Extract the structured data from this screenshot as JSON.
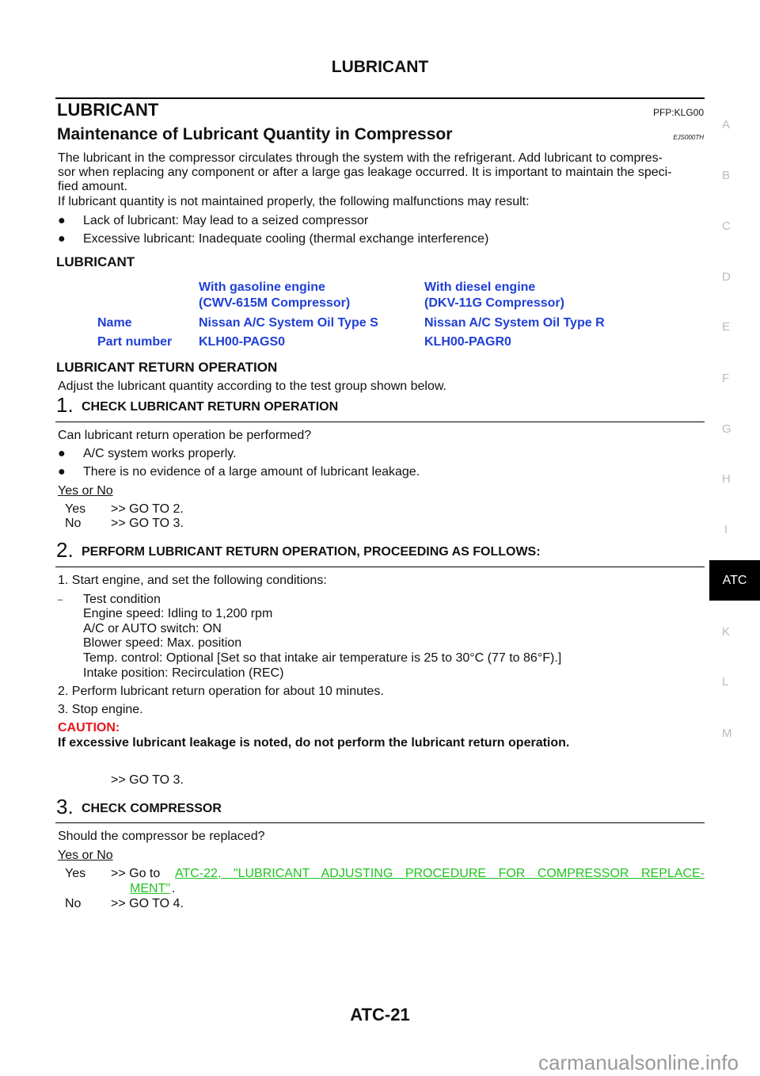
{
  "header": {
    "title": "LUBRICANT"
  },
  "section": {
    "title": "LUBRICANT",
    "code": "PFP:KLG00"
  },
  "subsection": {
    "title": "Maintenance of Lubricant Quantity in Compressor",
    "code": "EJS000TH"
  },
  "intro": [
    "The lubricant in the compressor circulates through the system with the refrigerant. Add lubricant to compres-",
    "sor when replacing any component or after a large gas leakage occurred. It is important to maintain the speci-",
    "fied amount.",
    "If lubricant quantity is not maintained properly, the following malfunctions may result:"
  ],
  "bullets": [
    "Lack of lubricant: May lead to a seized compressor",
    "Excessive lubricant: Inadequate cooling (thermal exchange interference)"
  ],
  "lubricant_heading": "LUBRICANT",
  "table": {
    "col1": [
      "With gasoline engine",
      "(CWV-615M Compressor)"
    ],
    "col2": [
      "With diesel engine",
      "(DKV-11G Compressor)"
    ],
    "rows": [
      {
        "label": "Name",
        "v1": "Nissan A/C System Oil Type S",
        "v2": "Nissan A/C System Oil Type R"
      },
      {
        "label": "Part number",
        "v1": "KLH00-PAGS0",
        "v2": "KLH00-PAGR0"
      }
    ]
  },
  "return_heading": "LUBRICANT RETURN OPERATION",
  "return_intro": "Adjust the lubricant quantity according to the test group shown below.",
  "step1": {
    "num": "1.",
    "title": "CHECK LUBRICANT RETURN OPERATION",
    "question": "Can lubricant return operation be performed?",
    "bullets": [
      "A/C system works properly.",
      "There is no evidence of a large amount of lubricant leakage."
    ],
    "yes_no": "Yes or No",
    "yes": "Yes",
    "yes_action": ">> GO TO 2.",
    "no": "No",
    "no_action": ">> GO TO 3."
  },
  "step2": {
    "num": "2.",
    "title": "PERFORM LUBRICANT RETURN OPERATION, PROCEEDING AS FOLLOWS:",
    "items": [
      "1.  Start engine, and set the following conditions:",
      "2.  Perform lubricant return operation for about 10 minutes.",
      "3.  Stop engine."
    ],
    "dash": "–",
    "conditions": [
      "Test condition",
      "Engine speed: Idling to 1,200 rpm",
      "A/C or AUTO switch: ON",
      "Blower speed: Max. position",
      "Temp. control: Optional [Set so that intake air temperature is 25 to 30°C (77 to 86°F).]",
      "Intake position: Recirculation (REC)"
    ],
    "caution_label": "CAUTION:",
    "caution_text": "If excessive lubricant leakage is noted, do not perform the lubricant return operation.",
    "action": ">> GO TO 3."
  },
  "step3": {
    "num": "3.",
    "title": "CHECK COMPRESSOR",
    "question": "Should the compressor be replaced?",
    "yes_no": "Yes or No",
    "yes": "Yes",
    "yes_action": ">> Go  to ",
    "link1": "ATC-22, \"LUBRICANT ADJUSTING PROCEDURE FOR COMPRESSOR REPLACE-",
    "link2": "MENT\"",
    "link_end": " .",
    "no": "No",
    "no_action": ">> GO TO 4."
  },
  "footer": {
    "page": "ATC-21"
  },
  "side_tabs": [
    "A",
    "B",
    "C",
    "D",
    "E",
    "F",
    "G",
    "H",
    "I",
    "ATC",
    "K",
    "L",
    "M"
  ],
  "side_active": "ATC",
  "watermark": "carmanualsonline.info",
  "colors": {
    "link": "#22c322",
    "table_text": "#1f3fd6",
    "caution": "#e8141b"
  }
}
